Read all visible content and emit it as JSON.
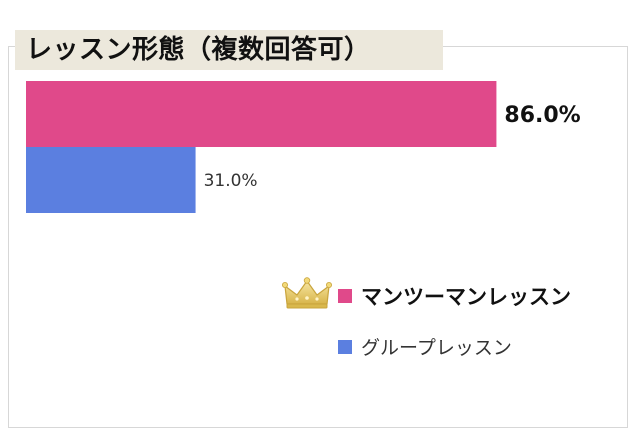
{
  "title": "レッスン形態（複数回答可）",
  "colors": {
    "series_1": "#e0498a",
    "series_2": "#5b7fe0",
    "title_bg": "#ece8dc",
    "crown": "#e3c65a"
  },
  "legend": [
    {
      "label": "マンツーマンレッスン",
      "icon": "crown-icon"
    },
    {
      "label": "グループレッスン"
    }
  ],
  "chart_data": {
    "type": "bar",
    "orientation": "horizontal",
    "title": "レッスン形態（複数回答可）",
    "unit": "%",
    "xlim": [
      0,
      100
    ],
    "grid": false,
    "legend_position": "bottom-right",
    "series": [
      {
        "name": "マンツーマンレッスン",
        "value": 86.0,
        "label": "86.0%"
      },
      {
        "name": "グループレッスン",
        "value": 31.0,
        "label": "31.0%"
      }
    ]
  }
}
